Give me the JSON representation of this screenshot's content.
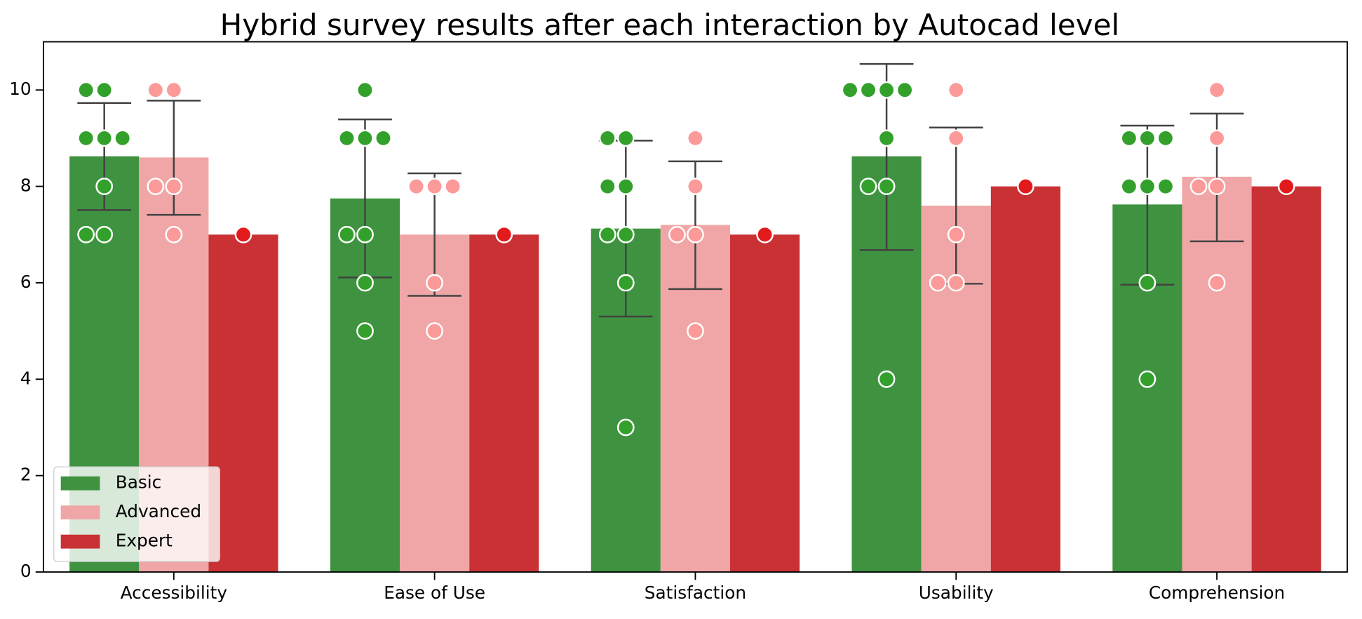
{
  "chart_data": {
    "type": "bar",
    "title": "Hybrid survey results after each interaction by Autocad level",
    "categories": [
      "Accessibility",
      "Ease of Use",
      "Satisfaction",
      "Usability",
      "Comprehension"
    ],
    "ylim": [
      0,
      11
    ],
    "yticks": [
      0,
      2,
      4,
      6,
      8,
      10
    ],
    "legend": "lower left",
    "series": [
      {
        "name": "Basic",
        "color": "#3f9340",
        "point_color": "#33a02c",
        "values": [
          8.625,
          7.75,
          7.125,
          8.625,
          7.625
        ],
        "ci_low": [
          7.51,
          6.11,
          5.3,
          6.68,
          5.96
        ],
        "ci_high": [
          9.73,
          9.39,
          8.95,
          10.54,
          9.26
        ],
        "points": [
          [
            10,
            10,
            9,
            9,
            9,
            8,
            7,
            7
          ],
          [
            10,
            9,
            9,
            9,
            7,
            7,
            6,
            5
          ],
          [
            9,
            9,
            8,
            8,
            7,
            7,
            6,
            3
          ],
          [
            10,
            10,
            10,
            10,
            9,
            8,
            8,
            4
          ],
          [
            9,
            9,
            9,
            8,
            8,
            8,
            6,
            4
          ]
        ]
      },
      {
        "name": "Advanced",
        "color": "#f0a6a6",
        "point_color": "#fb9a99",
        "values": [
          8.6,
          7,
          7.2,
          7.6,
          8.2
        ],
        "ci_low": [
          7.41,
          5.73,
          5.87,
          5.98,
          6.86
        ],
        "ci_high": [
          9.78,
          8.27,
          8.52,
          9.22,
          9.51
        ],
        "points": [
          [
            10,
            10,
            8,
            8,
            7
          ],
          [
            8,
            8,
            8,
            6,
            5
          ],
          [
            9,
            8,
            7,
            7,
            5
          ],
          [
            10,
            9,
            7,
            6,
            6
          ],
          [
            10,
            9,
            8,
            8,
            6
          ]
        ]
      },
      {
        "name": "Expert",
        "color": "#c93135",
        "point_color": "#e31a1c",
        "values": [
          7,
          7,
          7,
          8,
          8
        ],
        "points": [
          [
            7
          ],
          [
            7
          ],
          [
            7
          ],
          [
            8
          ],
          [
            8
          ]
        ]
      }
    ]
  }
}
